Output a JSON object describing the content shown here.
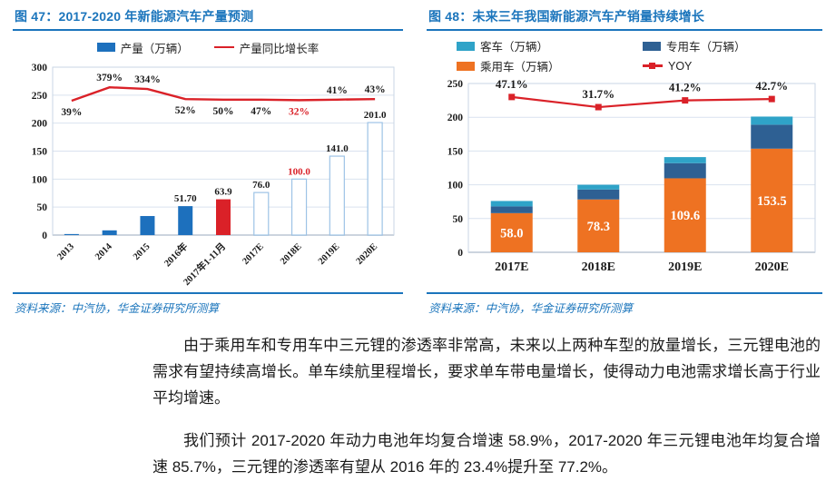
{
  "page": {
    "background": "#ffffff"
  },
  "figures": [
    {
      "source_label": "资料来源：中汽协，华金证券研究所测算"
    },
    {
      "source_label": "资料来源：中汽协，华金证券研究所测算"
    }
  ],
  "body": {
    "paragraphs": [
      "由于乘用车和专用车中三元锂的渗透率非常高，未来以上两种车型的放量增长，三元锂电池的需求有望持续高增长。单车续航里程增长，要求单车带电量增长，使得动力电池需求增长高于行业平均增速。",
      "我们预计 2017-2020 年动力电池年均复合增速 58.9%，2017-2020 年三元锂电池年均复合增速 85.7%，三元锂的渗透率有望从 2016 年的 23.4%提升至 77.2%。"
    ]
  },
  "chart_data": [
    {
      "type": "bar",
      "subtype": "combo-bar-line",
      "title": "图 47：2017-2020 年新能源汽车产量预测",
      "categories": [
        "2013",
        "2014",
        "2015",
        "2016年",
        "2017年1-11月",
        "2017E",
        "2018E",
        "2019E",
        "2020E"
      ],
      "xlabel": "",
      "ylabel": "",
      "ylim": [
        0,
        300
      ],
      "yticks": [
        0,
        50,
        100,
        150,
        200,
        250,
        300
      ],
      "grid": true,
      "legend_position": "top",
      "legend": [
        {
          "label": "产量（万辆）",
          "swatch": "rect",
          "color": "#1d70bd"
        },
        {
          "label": "产量同比增长率",
          "swatch": "line",
          "color": "#da2128"
        }
      ],
      "bar_series": {
        "name": "产量（万辆）",
        "values": [
          1.8,
          8.4,
          34.0,
          51.7,
          63.9,
          76.0,
          100.0,
          141.0,
          201.0
        ],
        "kinds": [
          "solid",
          "solid",
          "solid",
          "solid",
          "solid",
          "outline",
          "outline",
          "outline",
          "outline"
        ],
        "colors": [
          "#1d70bd",
          "#1d70bd",
          "#1d70bd",
          "#1d70bd",
          "#da2128",
          "#9dc3e6",
          "#9dc3e6",
          "#9dc3e6",
          "#9dc3e6"
        ],
        "labels": [
          "",
          "",
          "",
          "51.70",
          "63.9",
          "76.0",
          "100.0",
          "141.0",
          "201.0"
        ],
        "label_colors": [
          "",
          "",
          "",
          "#1a1a1a",
          "#1a1a1a",
          "#1a1a1a",
          "#da2128",
          "#1a1a1a",
          "#1a1a1a"
        ]
      },
      "line_series": {
        "name": "产量同比增长率",
        "values_pct": [
          39,
          379,
          334,
          52,
          50,
          47,
          32,
          41,
          43
        ],
        "labels": [
          "39%",
          "379%",
          "334%",
          "52%",
          "50%",
          "47%",
          "32%",
          "41%",
          "43%"
        ],
        "label_side": [
          "below",
          "above",
          "above",
          "below",
          "below",
          "below",
          "below",
          "above",
          "above"
        ],
        "label_colors": [
          "#1a1a1a",
          "#1a1a1a",
          "#1a1a1a",
          "#1a1a1a",
          "#1a1a1a",
          "#1a1a1a",
          "#da2128",
          "#1a1a1a",
          "#1a1a1a"
        ],
        "color": "#da2128",
        "plot_y_left_axis": [
          240,
          264,
          261,
          243,
          242,
          242,
          241,
          242,
          243
        ]
      }
    },
    {
      "type": "bar",
      "subtype": "stacked-bar-line",
      "title": "图 48：未来三年我国新能源汽车产销量持续增长",
      "categories": [
        "2017E",
        "2018E",
        "2019E",
        "2020E"
      ],
      "xlabel": "",
      "ylabel": "",
      "ylim": [
        0,
        250
      ],
      "yticks": [
        0,
        50,
        100,
        150,
        200,
        250
      ],
      "grid": true,
      "legend_position": "top",
      "legend": [
        {
          "label": "客车（万辆）",
          "swatch": "rect",
          "color": "#2fa3c8"
        },
        {
          "label": "专用车（万辆）",
          "swatch": "rect",
          "color": "#2e6093"
        },
        {
          "label": "乘用车（万辆）",
          "swatch": "rect",
          "color": "#ee7222"
        },
        {
          "label": "YOY",
          "swatch": "line-marker",
          "color": "#da2128"
        }
      ],
      "stack_series": [
        {
          "name": "乘用车（万辆）",
          "color": "#ee7222",
          "values": [
            58.0,
            78.3,
            109.6,
            153.5
          ],
          "labels": [
            "58.0",
            "78.3",
            "109.6",
            "153.5"
          ],
          "label_color": "#ffffff"
        },
        {
          "name": "专用车（万辆）",
          "color": "#2e6093",
          "values": [
            10.0,
            14.7,
            22.4,
            35.5
          ]
        },
        {
          "name": "客车（万辆）",
          "color": "#2fa3c8",
          "values": [
            8.0,
            7.0,
            9.0,
            12.0
          ]
        }
      ],
      "line_series": {
        "name": "YOY",
        "values_pct": [
          47.1,
          31.7,
          41.2,
          42.7
        ],
        "labels": [
          "47.1%",
          "31.7%",
          "41.2%",
          "42.7%"
        ],
        "color": "#da2128",
        "plot_y_left_axis": [
          230,
          215,
          225,
          227
        ]
      }
    }
  ]
}
